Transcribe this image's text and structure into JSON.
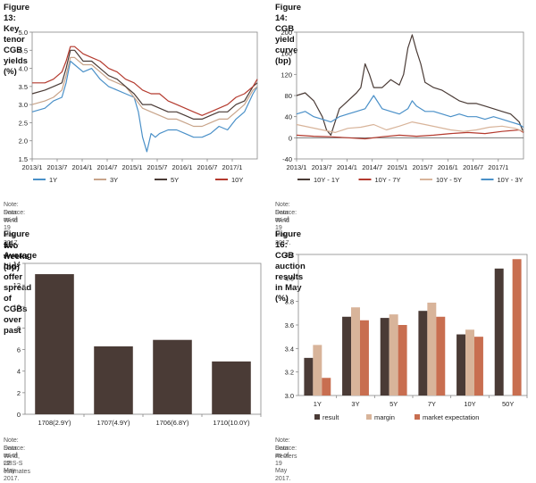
{
  "chart_data": [
    {
      "type": "line",
      "title": "Figure 13: Key tenor CGB yields (%)",
      "note": "Note: Data as of 19 May 2017.",
      "source": "Source:  Wind",
      "ylim": [
        1.5,
        5.0
      ],
      "yticks": [
        "1.5",
        "2.0",
        "2.5",
        "3.0",
        "3.5",
        "4.0",
        "4.5",
        "5.0"
      ],
      "xticks": [
        "2013/1",
        "2013/7",
        "2014/1",
        "2014/7",
        "2015/1",
        "2015/7",
        "2016/1",
        "2016/7",
        "2017/1"
      ],
      "xlim": [
        0,
        53
      ],
      "series": [
        {
          "name": "1Y",
          "color": "#4a90c8",
          "x": [
            0,
            3,
            5,
            7,
            8,
            9,
            10,
            12,
            14,
            16,
            18,
            20,
            22,
            24,
            25,
            26,
            27,
            28,
            29,
            30,
            32,
            34,
            36,
            38,
            40,
            42,
            44,
            46,
            48,
            50,
            52,
            53
          ],
          "values": [
            2.8,
            2.9,
            3.1,
            3.2,
            3.6,
            4.2,
            4.1,
            3.9,
            4.0,
            3.7,
            3.5,
            3.4,
            3.3,
            3.2,
            2.8,
            2.1,
            1.7,
            2.2,
            2.1,
            2.2,
            2.3,
            2.3,
            2.2,
            2.1,
            2.1,
            2.2,
            2.4,
            2.3,
            2.6,
            2.8,
            3.3,
            3.5
          ]
        },
        {
          "name": "3Y",
          "color": "#c8a48a",
          "x": [
            0,
            3,
            5,
            7,
            8,
            9,
            10,
            12,
            14,
            16,
            18,
            20,
            22,
            24,
            26,
            28,
            30,
            32,
            34,
            36,
            38,
            40,
            42,
            44,
            46,
            48,
            50,
            52,
            53
          ],
          "values": [
            3.0,
            3.1,
            3.2,
            3.4,
            3.8,
            4.3,
            4.3,
            4.1,
            4.1,
            3.9,
            3.7,
            3.6,
            3.5,
            3.2,
            2.9,
            2.8,
            2.7,
            2.6,
            2.6,
            2.5,
            2.4,
            2.4,
            2.5,
            2.6,
            2.6,
            2.8,
            3.0,
            3.4,
            3.5
          ]
        },
        {
          "name": "5Y",
          "color": "#4a3b36",
          "x": [
            0,
            3,
            5,
            7,
            8,
            9,
            10,
            12,
            14,
            16,
            18,
            20,
            22,
            24,
            26,
            28,
            30,
            32,
            34,
            36,
            38,
            40,
            42,
            44,
            46,
            48,
            50,
            52,
            53
          ],
          "values": [
            3.3,
            3.4,
            3.5,
            3.6,
            4.0,
            4.5,
            4.5,
            4.2,
            4.2,
            4.0,
            3.8,
            3.7,
            3.5,
            3.3,
            3.0,
            3.0,
            2.9,
            2.8,
            2.8,
            2.7,
            2.6,
            2.6,
            2.7,
            2.8,
            2.8,
            3.0,
            3.1,
            3.5,
            3.6
          ]
        },
        {
          "name": "10Y",
          "color": "#b43a2e",
          "x": [
            0,
            3,
            5,
            7,
            8,
            9,
            10,
            12,
            14,
            16,
            18,
            20,
            22,
            24,
            26,
            28,
            30,
            32,
            34,
            36,
            38,
            40,
            42,
            44,
            46,
            48,
            50,
            52,
            53
          ],
          "values": [
            3.6,
            3.6,
            3.7,
            3.9,
            4.2,
            4.6,
            4.6,
            4.4,
            4.3,
            4.2,
            4.0,
            3.9,
            3.7,
            3.6,
            3.4,
            3.3,
            3.3,
            3.1,
            3.0,
            2.9,
            2.8,
            2.7,
            2.8,
            2.9,
            3.0,
            3.2,
            3.3,
            3.5,
            3.7
          ]
        }
      ]
    },
    {
      "type": "line",
      "title": "Figure 14: CGB yield curve (bp)",
      "note": "Note: Data as of 19 May 2017.",
      "source": "Source:  Wind",
      "ylim": [
        -40,
        200
      ],
      "yticks": [
        "-40",
        "0",
        "40",
        "80",
        "120",
        "160",
        "200"
      ],
      "xticks": [
        "2013/1",
        "2013/7",
        "2014/1",
        "2014/7",
        "2015/1",
        "2015/7",
        "2016/1",
        "2016/7",
        "2017/1"
      ],
      "xlim": [
        0,
        53
      ],
      "series": [
        {
          "name": "10Y - 1Y",
          "color": "#4a3b36",
          "x": [
            0,
            2,
            4,
            6,
            7,
            8,
            9,
            10,
            12,
            14,
            15,
            16,
            17,
            18,
            20,
            22,
            24,
            25,
            26,
            27,
            28,
            29,
            30,
            32,
            34,
            36,
            38,
            40,
            42,
            44,
            46,
            48,
            50,
            52,
            53
          ],
          "values": [
            80,
            85,
            70,
            40,
            15,
            5,
            30,
            55,
            70,
            85,
            95,
            140,
            120,
            95,
            95,
            110,
            100,
            120,
            170,
            195,
            165,
            140,
            105,
            95,
            90,
            80,
            70,
            65,
            65,
            60,
            55,
            50,
            45,
            30,
            10
          ]
        },
        {
          "name": "10Y - 7Y",
          "color": "#b43a2e",
          "x": [
            0,
            4,
            8,
            12,
            16,
            20,
            24,
            28,
            32,
            36,
            40,
            44,
            48,
            52,
            53
          ],
          "values": [
            5,
            3,
            2,
            0,
            -2,
            2,
            5,
            3,
            5,
            8,
            10,
            8,
            12,
            15,
            10
          ]
        },
        {
          "name": "10Y - 5Y",
          "color": "#d8b49a",
          "x": [
            0,
            3,
            6,
            9,
            12,
            15,
            18,
            21,
            24,
            27,
            30,
            33,
            36,
            39,
            42,
            45,
            48,
            51,
            53
          ],
          "values": [
            25,
            20,
            15,
            10,
            18,
            20,
            25,
            15,
            22,
            30,
            25,
            20,
            15,
            12,
            15,
            20,
            22,
            18,
            12
          ]
        },
        {
          "name": "10Y - 3Y",
          "color": "#4a90c8",
          "x": [
            0,
            2,
            4,
            6,
            8,
            10,
            12,
            14,
            16,
            18,
            20,
            22,
            24,
            26,
            27,
            28,
            30,
            32,
            34,
            36,
            38,
            40,
            42,
            44,
            46,
            48,
            50,
            52,
            53
          ],
          "values": [
            45,
            50,
            40,
            35,
            30,
            40,
            45,
            50,
            55,
            80,
            55,
            50,
            45,
            55,
            70,
            60,
            50,
            50,
            45,
            40,
            45,
            40,
            40,
            35,
            40,
            35,
            30,
            25,
            20
          ]
        }
      ]
    },
    {
      "type": "bar",
      "title": "Figure 15: Average bid-offer spread of CGBs over past two weeks (bp)",
      "title_line1": "Figure 15: Average bid-offer spread of CGBs over past",
      "title_line2": "two weeks (bp)",
      "note": "Note: Data as of 22 May 2017.",
      "source": "Source:  Wind, UBS-S estimates",
      "ylim": [
        0,
        14
      ],
      "yticks": [
        "0",
        "2",
        "4",
        "6",
        "8",
        "10",
        "12",
        "14"
      ],
      "categories": [
        "1708(2.9Y)",
        "1707(4.9Y)",
        "1706(6.8Y)",
        "1710(10.0Y)"
      ],
      "values": [
        13.0,
        6.3,
        6.9,
        4.9
      ],
      "color": "#4a3b36"
    },
    {
      "type": "bar",
      "title": "Figure 16: CGB auction results in May (%)",
      "note": "Note: Data as of 19 May 2017.",
      "source": "Source:  Reuters",
      "ylim": [
        3.0,
        4.2
      ],
      "yticks": [
        "3.0",
        "3.2",
        "3.4",
        "3.6",
        "3.8",
        "4.0",
        "4.2"
      ],
      "categories": [
        "1Y",
        "3Y",
        "5Y",
        "7Y",
        "10Y",
        "50Y"
      ],
      "series": [
        {
          "name": "result",
          "color": "#4a3b36",
          "values": [
            3.32,
            3.67,
            3.66,
            3.72,
            3.52,
            4.08
          ]
        },
        {
          "name": "margin",
          "color": "#d8b49a",
          "values": [
            3.43,
            3.75,
            3.69,
            3.79,
            3.56,
            null
          ]
        },
        {
          "name": "market expectation",
          "color": "#c86e50",
          "values": [
            3.15,
            3.64,
            3.6,
            3.67,
            3.5,
            4.16
          ]
        }
      ]
    }
  ]
}
